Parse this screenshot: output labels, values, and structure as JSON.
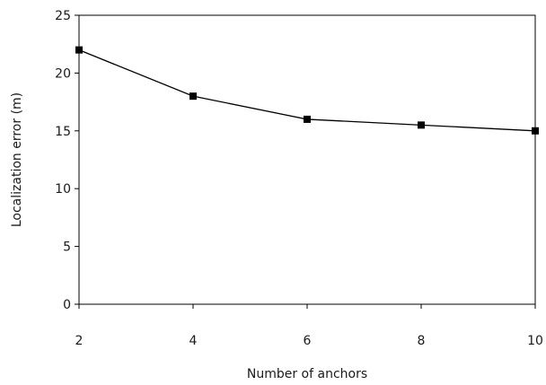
{
  "chart_data": {
    "type": "line",
    "xlabel": "Number of anchors",
    "ylabel": "Localization error (m)",
    "x": [
      2,
      4,
      6,
      8,
      10
    ],
    "series": [
      {
        "values": [
          22,
          18,
          16,
          15.5,
          15
        ]
      }
    ],
    "xlim": [
      2,
      10
    ],
    "ylim": [
      0,
      25
    ],
    "xticks": [
      2,
      4,
      6,
      8,
      10
    ],
    "yticks": [
      0,
      5,
      10,
      15,
      20,
      25
    ],
    "grid": false,
    "marker": "square",
    "line_color": "#000000"
  }
}
